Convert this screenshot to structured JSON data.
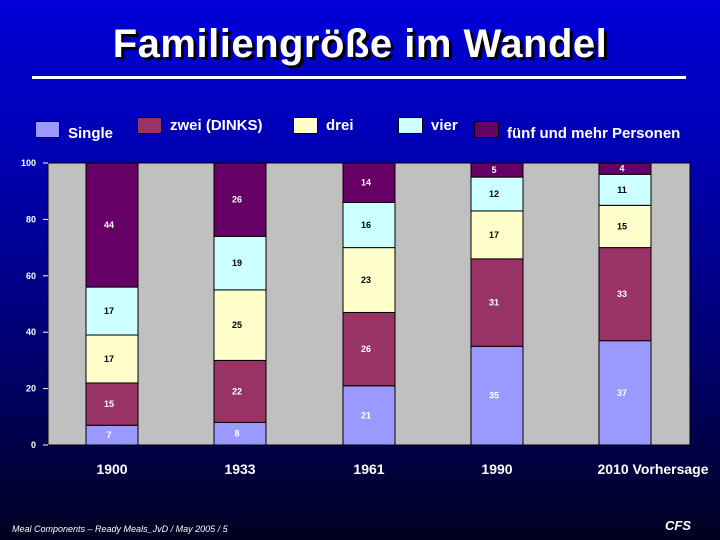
{
  "title": "Familiengröße im Wandel",
  "footer": "Meal Components – Ready Meals_JvD / May 2005 / 5",
  "logo_text": "CFS",
  "chart_data": {
    "type": "bar",
    "stacked": true,
    "categories": [
      "1900",
      "1933",
      "1961",
      "1990",
      "2010 Vorhersage"
    ],
    "series": [
      {
        "name": "Single",
        "color": "#9999ff",
        "values": [
          7,
          8,
          21,
          35,
          37
        ]
      },
      {
        "name": "zwei (DINKS)",
        "color": "#993366",
        "values": [
          15,
          22,
          26,
          31,
          33
        ]
      },
      {
        "name": "drei",
        "color": "#ffffcc",
        "values": [
          17,
          25,
          23,
          17,
          15
        ]
      },
      {
        "name": "vier",
        "color": "#ccffff",
        "values": [
          17,
          19,
          16,
          12,
          11
        ]
      },
      {
        "name": "fünf und mehr Personen",
        "color": "#660066",
        "values": [
          44,
          26,
          14,
          5,
          4
        ]
      }
    ],
    "ylim": [
      0,
      100
    ],
    "yticks": [
      0,
      20,
      40,
      60,
      80,
      100
    ],
    "grid": false,
    "legend_position": "top",
    "plot_background": "#c0c0c0"
  }
}
